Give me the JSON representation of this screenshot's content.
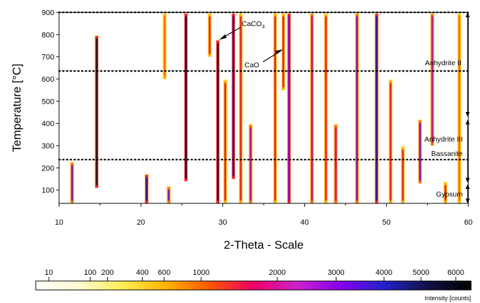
{
  "chart_data": {
    "type": "heatmap",
    "xlabel": "2-Theta - Scale",
    "ylabel": "Temperature [°C]",
    "xlim": [
      10,
      60
    ],
    "ylim": [
      40,
      900
    ],
    "x_ticks": [
      "10",
      "20",
      "30",
      "40",
      "50",
      "60"
    ],
    "y_ticks": [
      "100",
      "200",
      "300",
      "400",
      "500",
      "600",
      "700",
      "800",
      "900"
    ],
    "grid": false,
    "phase_boundaries": [
      237,
      636
    ],
    "phases": [
      {
        "name": "Anhydrite II",
        "t_min": 636,
        "t_max": 900
      },
      {
        "name": "Anhydrite III",
        "t_min": 237,
        "t_max": 410
      },
      {
        "name": "Bassanite",
        "t_min": 237,
        "t_max": 410
      },
      {
        "name": "Gypsum",
        "t_min": 40,
        "t_max": 140
      }
    ],
    "annotations": [
      {
        "label": "CaCO",
        "subscript": "3",
        "x": 29.5,
        "y": 775
      },
      {
        "label": "CaO",
        "x": 37.5,
        "y": 730
      }
    ],
    "colorbar": {
      "title": "Intensity [counts]",
      "ticks": [
        "10",
        "100",
        "200",
        "400",
        "600",
        "1000",
        "2000",
        "3000",
        "4000",
        "5000",
        "6000"
      ],
      "tick_values": [
        10,
        100,
        200,
        400,
        600,
        1000,
        2000,
        3000,
        4000,
        5000,
        6000
      ],
      "tick_positions": [
        0.03,
        0.125,
        0.165,
        0.245,
        0.295,
        0.38,
        0.555,
        0.69,
        0.8,
        0.885,
        0.965
      ],
      "colors": [
        "#ffffff",
        "#fff9d0",
        "#ffee55",
        "#ffb300",
        "#ff5500",
        "#ee0066",
        "#cc22cc",
        "#8800ee",
        "#2222cc",
        "#111144",
        "#000000"
      ]
    },
    "bands": [
      {
        "two_theta": 11.6,
        "t_min": 40,
        "t_max": 230,
        "intensity": 0.7
      },
      {
        "two_theta": 14.6,
        "t_min": 110,
        "t_max": 800,
        "intensity": 0.95
      },
      {
        "two_theta": 20.7,
        "t_min": 40,
        "t_max": 175,
        "intensity": 0.85
      },
      {
        "two_theta": 23.4,
        "t_min": 40,
        "t_max": 120,
        "intensity": 0.7
      },
      {
        "two_theta": 22.9,
        "t_min": 600,
        "t_max": 900,
        "intensity": 0.4
      },
      {
        "two_theta": 25.5,
        "t_min": 140,
        "t_max": 900,
        "intensity": 1.0
      },
      {
        "two_theta": 28.4,
        "t_min": 700,
        "t_max": 900,
        "intensity": 0.45
      },
      {
        "two_theta": 29.4,
        "t_min": 40,
        "t_max": 780,
        "intensity": 0.95
      },
      {
        "two_theta": 30.3,
        "t_min": 40,
        "t_max": 600,
        "intensity": 0.5
      },
      {
        "two_theta": 31.3,
        "t_min": 150,
        "t_max": 900,
        "intensity": 0.9
      },
      {
        "two_theta": 32.2,
        "t_min": 40,
        "t_max": 900,
        "intensity": 0.55
      },
      {
        "two_theta": 33.4,
        "t_min": 40,
        "t_max": 400,
        "intensity": 0.6
      },
      {
        "two_theta": 36.4,
        "t_min": 40,
        "t_max": 900,
        "intensity": 0.55
      },
      {
        "two_theta": 37.4,
        "t_min": 550,
        "t_max": 900,
        "intensity": 0.55
      },
      {
        "two_theta": 38.1,
        "t_min": 40,
        "t_max": 900,
        "intensity": 0.8
      },
      {
        "two_theta": 40.9,
        "t_min": 40,
        "t_max": 900,
        "intensity": 0.6
      },
      {
        "two_theta": 42.6,
        "t_min": 40,
        "t_max": 900,
        "intensity": 0.45
      },
      {
        "two_theta": 43.8,
        "t_min": 40,
        "t_max": 400,
        "intensity": 0.65
      },
      {
        "two_theta": 46.4,
        "t_min": 40,
        "t_max": 900,
        "intensity": 0.75
      },
      {
        "two_theta": 48.8,
        "t_min": 40,
        "t_max": 900,
        "intensity": 0.85
      },
      {
        "two_theta": 50.5,
        "t_min": 40,
        "t_max": 600,
        "intensity": 0.45
      },
      {
        "two_theta": 52.0,
        "t_min": 40,
        "t_max": 300,
        "intensity": 0.5
      },
      {
        "two_theta": 54.1,
        "t_min": 130,
        "t_max": 420,
        "intensity": 0.7
      },
      {
        "two_theta": 55.6,
        "t_min": 300,
        "t_max": 900,
        "intensity": 0.6
      },
      {
        "two_theta": 57.2,
        "t_min": 40,
        "t_max": 140,
        "intensity": 0.45
      },
      {
        "two_theta": 58.9,
        "t_min": 40,
        "t_max": 900,
        "intensity": 0.4
      }
    ]
  }
}
